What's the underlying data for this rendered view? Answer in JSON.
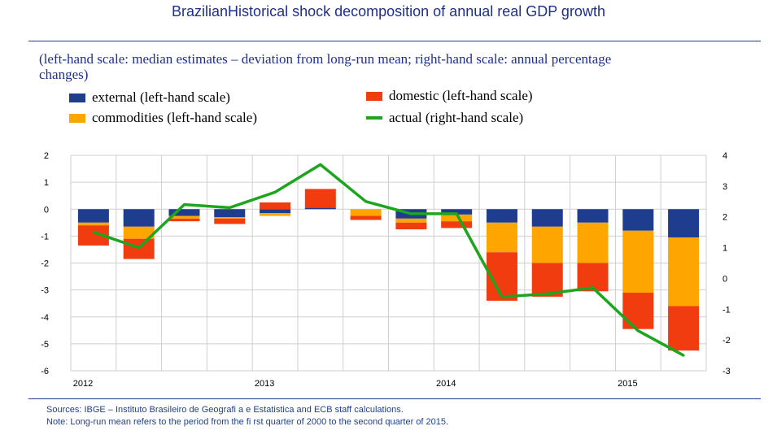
{
  "title": "BrazilianHistorical shock decomposition of annual real GDP growth",
  "subtitle": "(left-hand scale: median estimates – deviation from long-run mean; right-hand scale: annual percentage changes)",
  "legend": {
    "external": "external (left-hand scale)",
    "domestic": "domestic (left-hand scale)",
    "commodities": "commodities (left-hand scale)",
    "actual": "actual (right-hand scale)"
  },
  "footer": {
    "sources": "Sources: IBGE – Instituto Brasileiro de Geografi a e Estatistica and ECB staff calculations.",
    "note": "Note: Long-run mean refers to the period from the fi rst quarter of 2000 to the second quarter of 2015."
  },
  "colors": {
    "external": "#1f3d8f",
    "commodities": "#ffa500",
    "domestic": "#f03c0f",
    "actual": "#1ea51e"
  },
  "chart_data": {
    "type": "bar",
    "stacked": true,
    "x_labels": [
      "2012",
      "2013",
      "2014",
      "2015"
    ],
    "quarters": 14,
    "y_left": {
      "min": -6,
      "max": 2,
      "ticks": [
        2,
        1,
        0,
        -1,
        -2,
        -3,
        -4,
        -5,
        -6
      ]
    },
    "y_right": {
      "min": -3,
      "max": 4,
      "ticks": [
        4,
        3,
        2,
        1,
        0,
        -1,
        -2,
        -3
      ]
    },
    "grid": true,
    "series": [
      {
        "name": "external",
        "axis": "left",
        "values": [
          -0.5,
          -0.65,
          -0.25,
          -0.3,
          -0.15,
          0.05,
          0.0,
          -0.35,
          -0.2,
          -0.5,
          -0.65,
          -0.5,
          -0.8,
          -1.05
        ]
      },
      {
        "name": "commodities",
        "axis": "left",
        "values": [
          -0.1,
          -0.45,
          -0.1,
          -0.05,
          -0.1,
          0.0,
          -0.25,
          -0.15,
          -0.25,
          -1.1,
          -1.35,
          -1.5,
          -2.3,
          -2.55
        ]
      },
      {
        "name": "domestic",
        "axis": "left",
        "values": [
          -0.75,
          -0.75,
          -0.1,
          -0.2,
          0.25,
          0.7,
          -0.15,
          -0.25,
          -0.25,
          -1.8,
          -1.25,
          -1.05,
          -1.35,
          -1.65
        ]
      },
      {
        "name": "actual",
        "axis": "right",
        "type": "line",
        "values": [
          1.5,
          1.0,
          2.4,
          2.3,
          2.8,
          3.7,
          2.5,
          2.1,
          2.1,
          -0.6,
          -0.5,
          -0.3,
          -1.7,
          -2.5
        ]
      }
    ]
  }
}
